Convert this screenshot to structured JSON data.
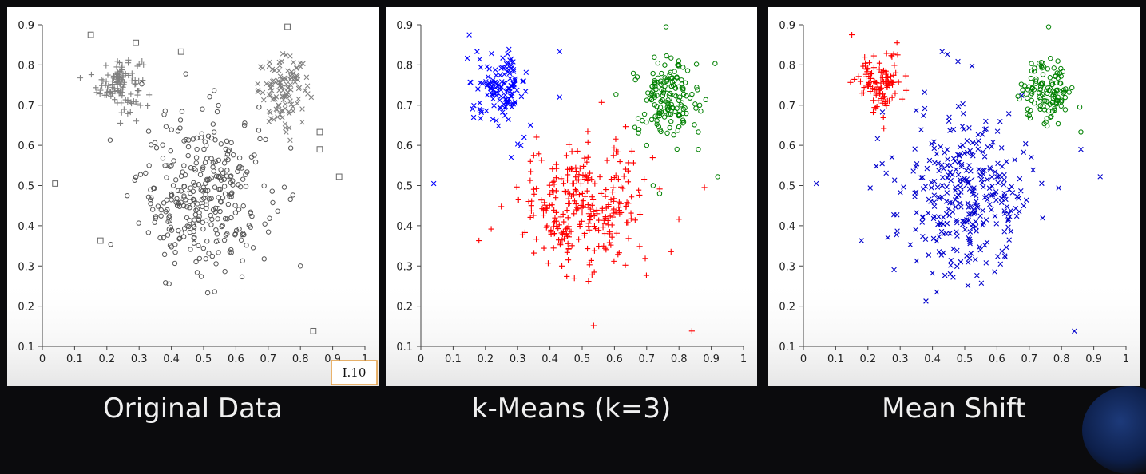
{
  "panels": [
    {
      "caption": "Original Data",
      "badge": "I.10",
      "chart_data": {
        "type": "scatter",
        "title": "",
        "xlabel": "",
        "ylabel": "",
        "xlim": [
          0,
          1
        ],
        "ylim": [
          0.1,
          0.9
        ],
        "xticks": [
          "0",
          "0.1",
          "0.2",
          "0.3",
          "0.4",
          "0.5",
          "0.6",
          "0.7",
          "0.8",
          "0.9",
          "1"
        ],
        "yticks": [
          "0.1",
          "0.2",
          "0.3",
          "0.4",
          "0.5",
          "0.6",
          "0.7",
          "0.8",
          "0.9"
        ],
        "grid": false,
        "series": [
          {
            "marker": "plus",
            "color": "#808080",
            "cluster": {
              "cx": 0.24,
              "cy": 0.755,
              "sx": 0.035,
              "sy": 0.035,
              "n": 110
            }
          },
          {
            "marker": "x",
            "color": "#808080",
            "cluster": {
              "cx": 0.75,
              "cy": 0.735,
              "sx": 0.04,
              "sy": 0.04,
              "n": 115
            }
          },
          {
            "marker": "circle",
            "color": "#555555",
            "cluster": {
              "cx": 0.5,
              "cy": 0.48,
              "sx": 0.1,
              "sy": 0.1,
              "n": 330
            }
          },
          {
            "marker": "square",
            "color": "#666666",
            "x": [
              0.15,
              0.29,
              0.43,
              0.76,
              0.04,
              0.18,
              0.86,
              0.86,
              0.92,
              0.84
            ],
            "y": [
              0.875,
              0.855,
              0.833,
              0.895,
              0.505,
              0.363,
              0.633,
              0.59,
              0.522,
              0.138
            ]
          }
        ]
      }
    },
    {
      "caption": "k-Means (k=3)",
      "chart_data": {
        "type": "scatter",
        "title": "",
        "xlabel": "",
        "ylabel": "",
        "xlim": [
          0,
          1
        ],
        "ylim": [
          0.1,
          0.9
        ],
        "xticks": [
          "0",
          "0.1",
          "0.2",
          "0.3",
          "0.4",
          "0.5",
          "0.6",
          "0.7",
          "0.8",
          "0.9",
          "1"
        ],
        "yticks": [
          "0.1",
          "0.2",
          "0.3",
          "0.4",
          "0.5",
          "0.6",
          "0.7",
          "0.8",
          "0.9"
        ],
        "grid": false,
        "series": [
          {
            "marker": "x",
            "color": "#0000ff",
            "cluster": {
              "cx": 0.25,
              "cy": 0.745,
              "sx": 0.04,
              "sy": 0.04,
              "n": 125
            },
            "extra_x": [
              0.15,
              0.43,
              0.04,
              0.32,
              0.31,
              0.28,
              0.34,
              0.43
            ],
            "extra_y": [
              0.875,
              0.833,
              0.505,
              0.62,
              0.6,
              0.57,
              0.65,
              0.72
            ]
          },
          {
            "marker": "circle",
            "color": "#008000",
            "cluster": {
              "cx": 0.76,
              "cy": 0.72,
              "sx": 0.05,
              "sy": 0.05,
              "n": 150
            },
            "extra_x": [
              0.76,
              0.92,
              0.86,
              0.86,
              0.72,
              0.74,
              0.7
            ],
            "extra_y": [
              0.895,
              0.522,
              0.633,
              0.59,
              0.5,
              0.48,
              0.6
            ]
          },
          {
            "marker": "plus",
            "color": "#ff0000",
            "cluster": {
              "cx": 0.5,
              "cy": 0.445,
              "sx": 0.1,
              "sy": 0.08,
              "n": 290
            },
            "extra_x": [
              0.18,
              0.84
            ],
            "extra_y": [
              0.363,
              0.138
            ]
          }
        ],
        "centers": [
          {
            "x": 0.25,
            "y": 0.745,
            "marker": "x",
            "color": "#0000ff"
          },
          {
            "x": 0.76,
            "y": 0.72,
            "marker": "circle",
            "color": "#008000"
          },
          {
            "x": 0.5,
            "y": 0.445,
            "marker": "plus",
            "color": "#ff0000"
          }
        ]
      }
    },
    {
      "caption": "Mean Shift",
      "chart_data": {
        "type": "scatter",
        "title": "",
        "xlabel": "",
        "ylabel": "",
        "xlim": [
          0,
          1
        ],
        "ylim": [
          0.1,
          0.9
        ],
        "xticks": [
          "0",
          "0.1",
          "0.2",
          "0.3",
          "0.4",
          "0.5",
          "0.6",
          "0.7",
          "0.8",
          "0.9",
          "1"
        ],
        "yticks": [
          "0.1",
          "0.2",
          "0.3",
          "0.4",
          "0.5",
          "0.6",
          "0.7",
          "0.8",
          "0.9"
        ],
        "grid": false,
        "series": [
          {
            "marker": "plus",
            "color": "#ff0000",
            "cluster": {
              "cx": 0.24,
              "cy": 0.755,
              "sx": 0.035,
              "sy": 0.035,
              "n": 110
            },
            "extra_x": [
              0.15,
              0.29
            ],
            "extra_y": [
              0.875,
              0.855
            ]
          },
          {
            "marker": "circle",
            "color": "#008000",
            "cluster": {
              "cx": 0.755,
              "cy": 0.735,
              "sx": 0.04,
              "sy": 0.04,
              "n": 120
            },
            "extra_x": [
              0.76,
              0.86
            ],
            "extra_y": [
              0.895,
              0.633
            ]
          },
          {
            "marker": "x",
            "color": "#0000cc",
            "cluster": {
              "cx": 0.5,
              "cy": 0.48,
              "sx": 0.1,
              "sy": 0.1,
              "n": 330
            },
            "extra_x": [
              0.43,
              0.04,
              0.18,
              0.86,
              0.92,
              0.84
            ],
            "extra_y": [
              0.833,
              0.505,
              0.363,
              0.59,
              0.522,
              0.138
            ]
          }
        ],
        "centers": [
          {
            "x": 0.24,
            "y": 0.755,
            "marker": "plus",
            "color": "#ff0000"
          },
          {
            "x": 0.755,
            "y": 0.735,
            "marker": "circle",
            "color": "#008000"
          },
          {
            "x": 0.51,
            "y": 0.505,
            "marker": "x",
            "color": "#0000cc"
          }
        ]
      }
    }
  ]
}
